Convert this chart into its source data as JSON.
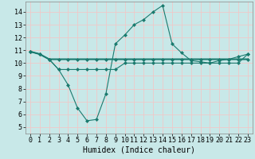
{
  "title": "",
  "xlabel": "Humidex (Indice chaleur)",
  "ylabel": "",
  "bg_color": "#c8e8e8",
  "grid_color": "#f0c8c8",
  "line_color": "#1a7a6e",
  "x_ticks": [
    0,
    1,
    2,
    3,
    4,
    5,
    6,
    7,
    8,
    9,
    10,
    11,
    12,
    13,
    14,
    15,
    16,
    17,
    18,
    19,
    20,
    21,
    22,
    23
  ],
  "y_ticks": [
    5,
    6,
    7,
    8,
    9,
    10,
    11,
    12,
    13,
    14
  ],
  "xlim": [
    -0.5,
    23.5
  ],
  "ylim": [
    4.5,
    14.8
  ],
  "line1_x": [
    0,
    1,
    2,
    3,
    4,
    5,
    6,
    7,
    8,
    9,
    10,
    11,
    12,
    13,
    14,
    15,
    16,
    17,
    18,
    19,
    20,
    21,
    22,
    23
  ],
  "line1_y": [
    10.9,
    10.7,
    10.3,
    10.3,
    10.3,
    10.3,
    10.3,
    10.3,
    10.3,
    10.3,
    10.3,
    10.3,
    10.3,
    10.3,
    10.3,
    10.3,
    10.3,
    10.3,
    10.3,
    10.3,
    10.3,
    10.3,
    10.3,
    10.3
  ],
  "line2_x": [
    0,
    1,
    2,
    3,
    4,
    5,
    6,
    7,
    8,
    9,
    10,
    11,
    12,
    13,
    14,
    15,
    16,
    17,
    18,
    19,
    20,
    21,
    22,
    23
  ],
  "line2_y": [
    10.9,
    10.7,
    10.3,
    9.5,
    9.5,
    9.5,
    9.5,
    9.5,
    9.5,
    9.5,
    10.0,
    10.0,
    10.0,
    10.0,
    10.0,
    10.0,
    10.0,
    10.0,
    10.0,
    10.0,
    10.0,
    10.0,
    10.0,
    10.7
  ],
  "line3_x": [
    0,
    1,
    2,
    3,
    4,
    5,
    6,
    7,
    8,
    9,
    10,
    11,
    12,
    13,
    14,
    15,
    16,
    17,
    18,
    19,
    20,
    21,
    22,
    23
  ],
  "line3_y": [
    10.9,
    10.7,
    10.3,
    9.5,
    8.3,
    6.5,
    5.5,
    5.6,
    7.6,
    11.5,
    12.2,
    13.0,
    13.4,
    14.0,
    14.5,
    11.5,
    10.8,
    10.2,
    10.1,
    10.0,
    10.2,
    10.3,
    10.5,
    10.7
  ],
  "tick_fontsize": 6,
  "xlabel_fontsize": 7,
  "marker": "D",
  "markersize": 2.5,
  "lw_thick": 1.5,
  "lw_thin": 0.8
}
